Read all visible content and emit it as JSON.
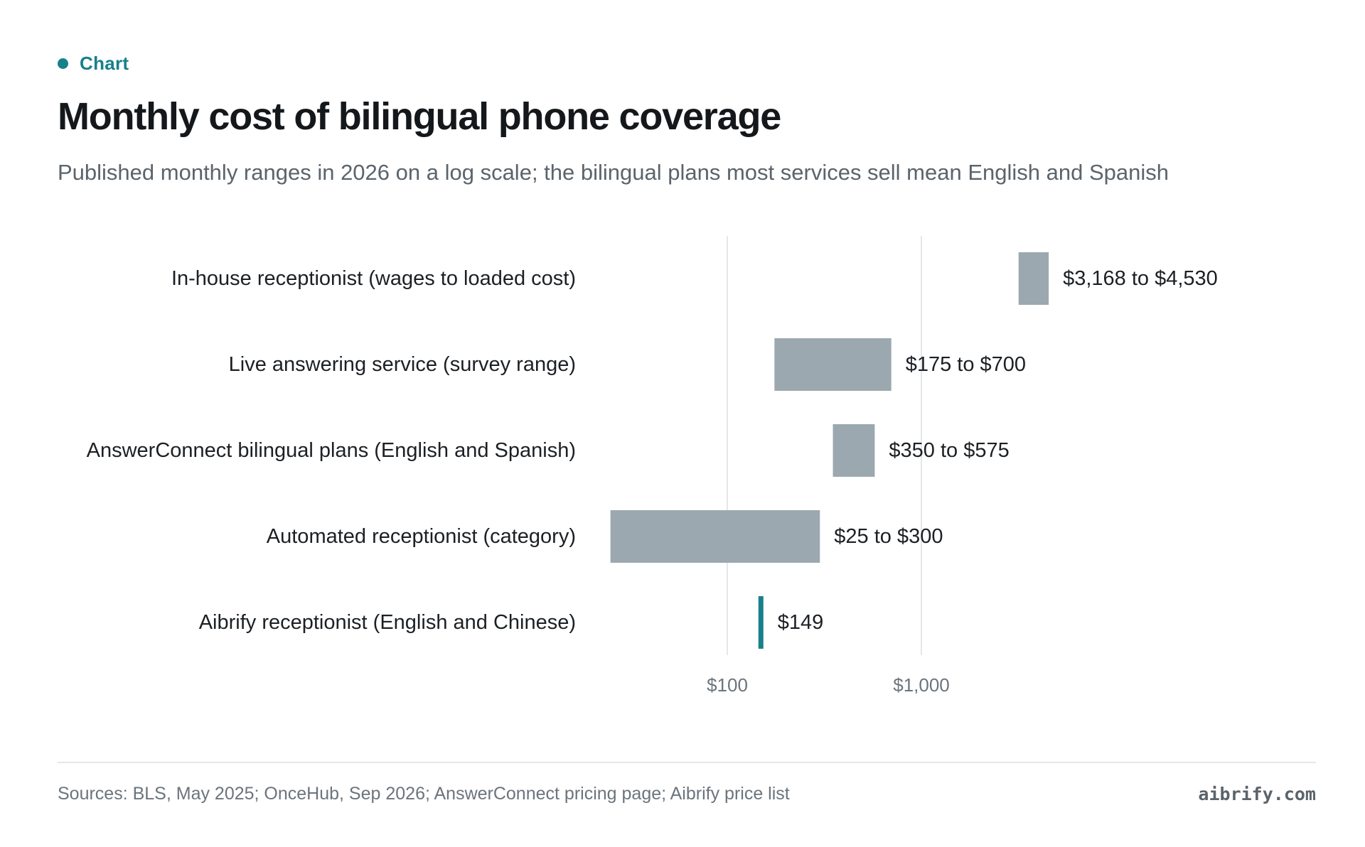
{
  "eyebrow": {
    "label": "Chart"
  },
  "title": "Monthly cost of bilingual phone coverage",
  "subtitle": "Published monthly ranges in 2026 on a log scale; the bilingual plans most services sell mean English and Spanish",
  "footer": {
    "sources": "Sources: BLS, May 2025; OnceHub, Sep 2026; AnswerConnect pricing page; Aibrify price list",
    "brand": "aibrify.com"
  },
  "colors": {
    "accent": "#17808b",
    "range_bar": "#9ba8b0",
    "grid": "#e4e7ea"
  },
  "chart_data": {
    "type": "bar",
    "orientation": "horizontal",
    "x_scale": "log",
    "xlim": [
      15,
      10000
    ],
    "x_ticks": [
      {
        "value": 100,
        "label": "$100"
      },
      {
        "value": 1000,
        "label": "$1,000"
      }
    ],
    "grid": true,
    "categories": [
      "In-house receptionist (wages to loaded cost)",
      "Live answering service (survey range)",
      "AnswerConnect bilingual plans (English and Spanish)",
      "Automated receptionist (category)",
      "Aibrify receptionist (English and Chinese)"
    ],
    "ranges": [
      {
        "low": 3168,
        "high": 4530,
        "label": "$3,168 to $4,530"
      },
      {
        "low": 175,
        "high": 700,
        "label": "$175 to $700"
      },
      {
        "low": 350,
        "high": 575,
        "label": "$350 to $575"
      },
      {
        "low": 25,
        "high": 300,
        "label": "$25 to $300"
      },
      {
        "low": 149,
        "high": 149,
        "label": "$149",
        "highlight": true
      }
    ]
  }
}
